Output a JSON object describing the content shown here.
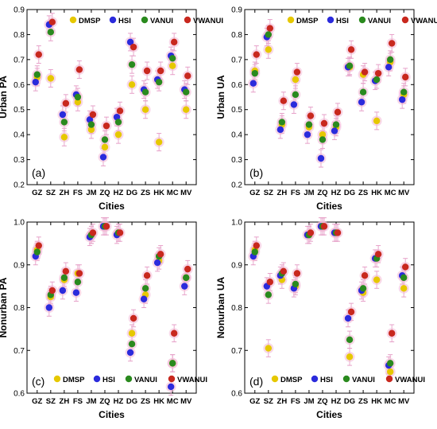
{
  "colors": {
    "DMSP": "#e6c800",
    "HSI": "#2b2bdc",
    "VANUI": "#2a8a1e",
    "VWANUI": "#c8281e",
    "halo": "#f2b8d6",
    "errorbar": "#e6a0c8"
  },
  "legend_labels": [
    "DMSP",
    "HSI",
    "VANUI",
    "VWANUI"
  ],
  "chart_data": [
    {
      "type": "scatter",
      "panel_label": "(a)",
      "xlabel": "Cities",
      "ylabel": "Urban PA",
      "ylim": [
        0.2,
        0.9
      ],
      "yticks": [
        "0.2",
        "0.3",
        "0.4",
        "0.5",
        "0.6",
        "0.7",
        "0.8",
        "0.9"
      ],
      "categories": [
        "GZ",
        "SZ",
        "ZH",
        "FS",
        "JM",
        "ZQ",
        "HZ",
        "DG",
        "ZS",
        "HK",
        "MC",
        "MV"
      ],
      "legend_position": "top-right",
      "error": 0.035,
      "series": [
        {
          "name": "DMSP",
          "values": [
            0.63,
            0.625,
            0.39,
            0.53,
            0.42,
            0.35,
            0.4,
            0.6,
            0.5,
            0.37,
            0.675,
            0.5
          ]
        },
        {
          "name": "HSI",
          "values": [
            0.61,
            0.84,
            0.48,
            0.56,
            0.46,
            0.31,
            0.47,
            0.77,
            0.58,
            0.62,
            0.715,
            0.58
          ]
        },
        {
          "name": "VANUI",
          "values": [
            0.64,
            0.81,
            0.45,
            0.55,
            0.44,
            0.38,
            0.45,
            0.68,
            0.57,
            0.61,
            0.705,
            0.57
          ]
        },
        {
          "name": "VWANUI",
          "values": [
            0.72,
            0.85,
            0.525,
            0.66,
            0.48,
            0.435,
            0.495,
            0.75,
            0.655,
            0.655,
            0.77,
            0.635
          ]
        }
      ]
    },
    {
      "type": "scatter",
      "panel_label": "(b)",
      "xlabel": "Cities",
      "ylabel": "Urban UA",
      "ylim": [
        0.2,
        0.9
      ],
      "yticks": [
        "0.2",
        "0.3",
        "0.4",
        "0.5",
        "0.6",
        "0.7",
        "0.8",
        "0.9"
      ],
      "categories": [
        "GZ",
        "SZ",
        "ZH",
        "FS",
        "JM",
        "ZQ",
        "HZ",
        "DG",
        "ZS",
        "HK",
        "MC",
        "MV"
      ],
      "legend_position": "top-right",
      "error": 0.035,
      "series": [
        {
          "name": "DMSP",
          "values": [
            0.655,
            0.74,
            0.44,
            0.62,
            0.43,
            0.4,
            0.43,
            0.67,
            0.64,
            0.455,
            0.69,
            0.56
          ]
        },
        {
          "name": "HSI",
          "values": [
            0.605,
            0.79,
            0.42,
            0.52,
            0.4,
            0.305,
            0.415,
            0.67,
            0.53,
            0.615,
            0.67,
            0.54
          ]
        },
        {
          "name": "VANUI",
          "values": [
            0.645,
            0.8,
            0.45,
            0.56,
            0.44,
            0.38,
            0.44,
            0.675,
            0.57,
            0.62,
            0.7,
            0.57
          ]
        },
        {
          "name": "VWANUI",
          "values": [
            0.72,
            0.825,
            0.535,
            0.65,
            0.475,
            0.445,
            0.49,
            0.74,
            0.65,
            0.645,
            0.765,
            0.63
          ]
        }
      ]
    },
    {
      "type": "scatter",
      "panel_label": "(c)",
      "xlabel": "Cities",
      "ylabel": "Nonurban PA",
      "ylim": [
        0.6,
        1.0
      ],
      "yticks": [
        "0.6",
        "0.7",
        "0.8",
        "0.9",
        "1.0"
      ],
      "categories": [
        "GZ",
        "SZ",
        "ZH",
        "FS",
        "JM",
        "ZQ",
        "HZ",
        "DG",
        "ZS",
        "HK",
        "MC",
        "MV"
      ],
      "legend_position": "bottom-center",
      "error": 0.02,
      "series": [
        {
          "name": "DMSP",
          "values": [
            0.935,
            0.825,
            0.865,
            0.88,
            0.97,
            0.99,
            0.975,
            0.74,
            0.83,
            0.91,
            0.67,
            0.87
          ]
        },
        {
          "name": "HSI",
          "values": [
            0.92,
            0.8,
            0.84,
            0.835,
            0.965,
            0.99,
            0.97,
            0.695,
            0.82,
            0.905,
            0.615,
            0.85
          ]
        },
        {
          "name": "VANUI",
          "values": [
            0.93,
            0.83,
            0.87,
            0.86,
            0.97,
            0.99,
            0.975,
            0.715,
            0.845,
            0.92,
            0.67,
            0.87
          ]
        },
        {
          "name": "VWANUI",
          "values": [
            0.945,
            0.84,
            0.885,
            0.88,
            0.975,
            0.99,
            0.975,
            0.775,
            0.875,
            0.925,
            0.74,
            0.89
          ]
        }
      ]
    },
    {
      "type": "scatter",
      "panel_label": "(d)",
      "xlabel": "Cities",
      "ylabel": "Nonurban UA",
      "ylim": [
        0.6,
        1.0
      ],
      "yticks": [
        "0.6",
        "0.7",
        "0.8",
        "0.9",
        "1.0"
      ],
      "categories": [
        "GZ",
        "SZ",
        "ZH",
        "FS",
        "JM",
        "ZQ",
        "HZ",
        "DG",
        "ZS",
        "HK",
        "MC",
        "MV"
      ],
      "legend_position": "bottom-center",
      "error": 0.02,
      "series": [
        {
          "name": "DMSP",
          "values": [
            0.935,
            0.705,
            0.865,
            0.85,
            0.97,
            0.99,
            0.975,
            0.685,
            0.835,
            0.865,
            0.65,
            0.845
          ]
        },
        {
          "name": "HSI",
          "values": [
            0.92,
            0.85,
            0.875,
            0.845,
            0.97,
            0.99,
            0.975,
            0.775,
            0.84,
            0.915,
            0.665,
            0.875
          ]
        },
        {
          "name": "VANUI",
          "values": [
            0.93,
            0.83,
            0.88,
            0.855,
            0.97,
            0.99,
            0.975,
            0.725,
            0.845,
            0.915,
            0.67,
            0.87
          ]
        },
        {
          "name": "VWANUI",
          "values": [
            0.945,
            0.86,
            0.885,
            0.88,
            0.975,
            0.99,
            0.975,
            0.79,
            0.875,
            0.925,
            0.74,
            0.895
          ]
        }
      ]
    }
  ]
}
